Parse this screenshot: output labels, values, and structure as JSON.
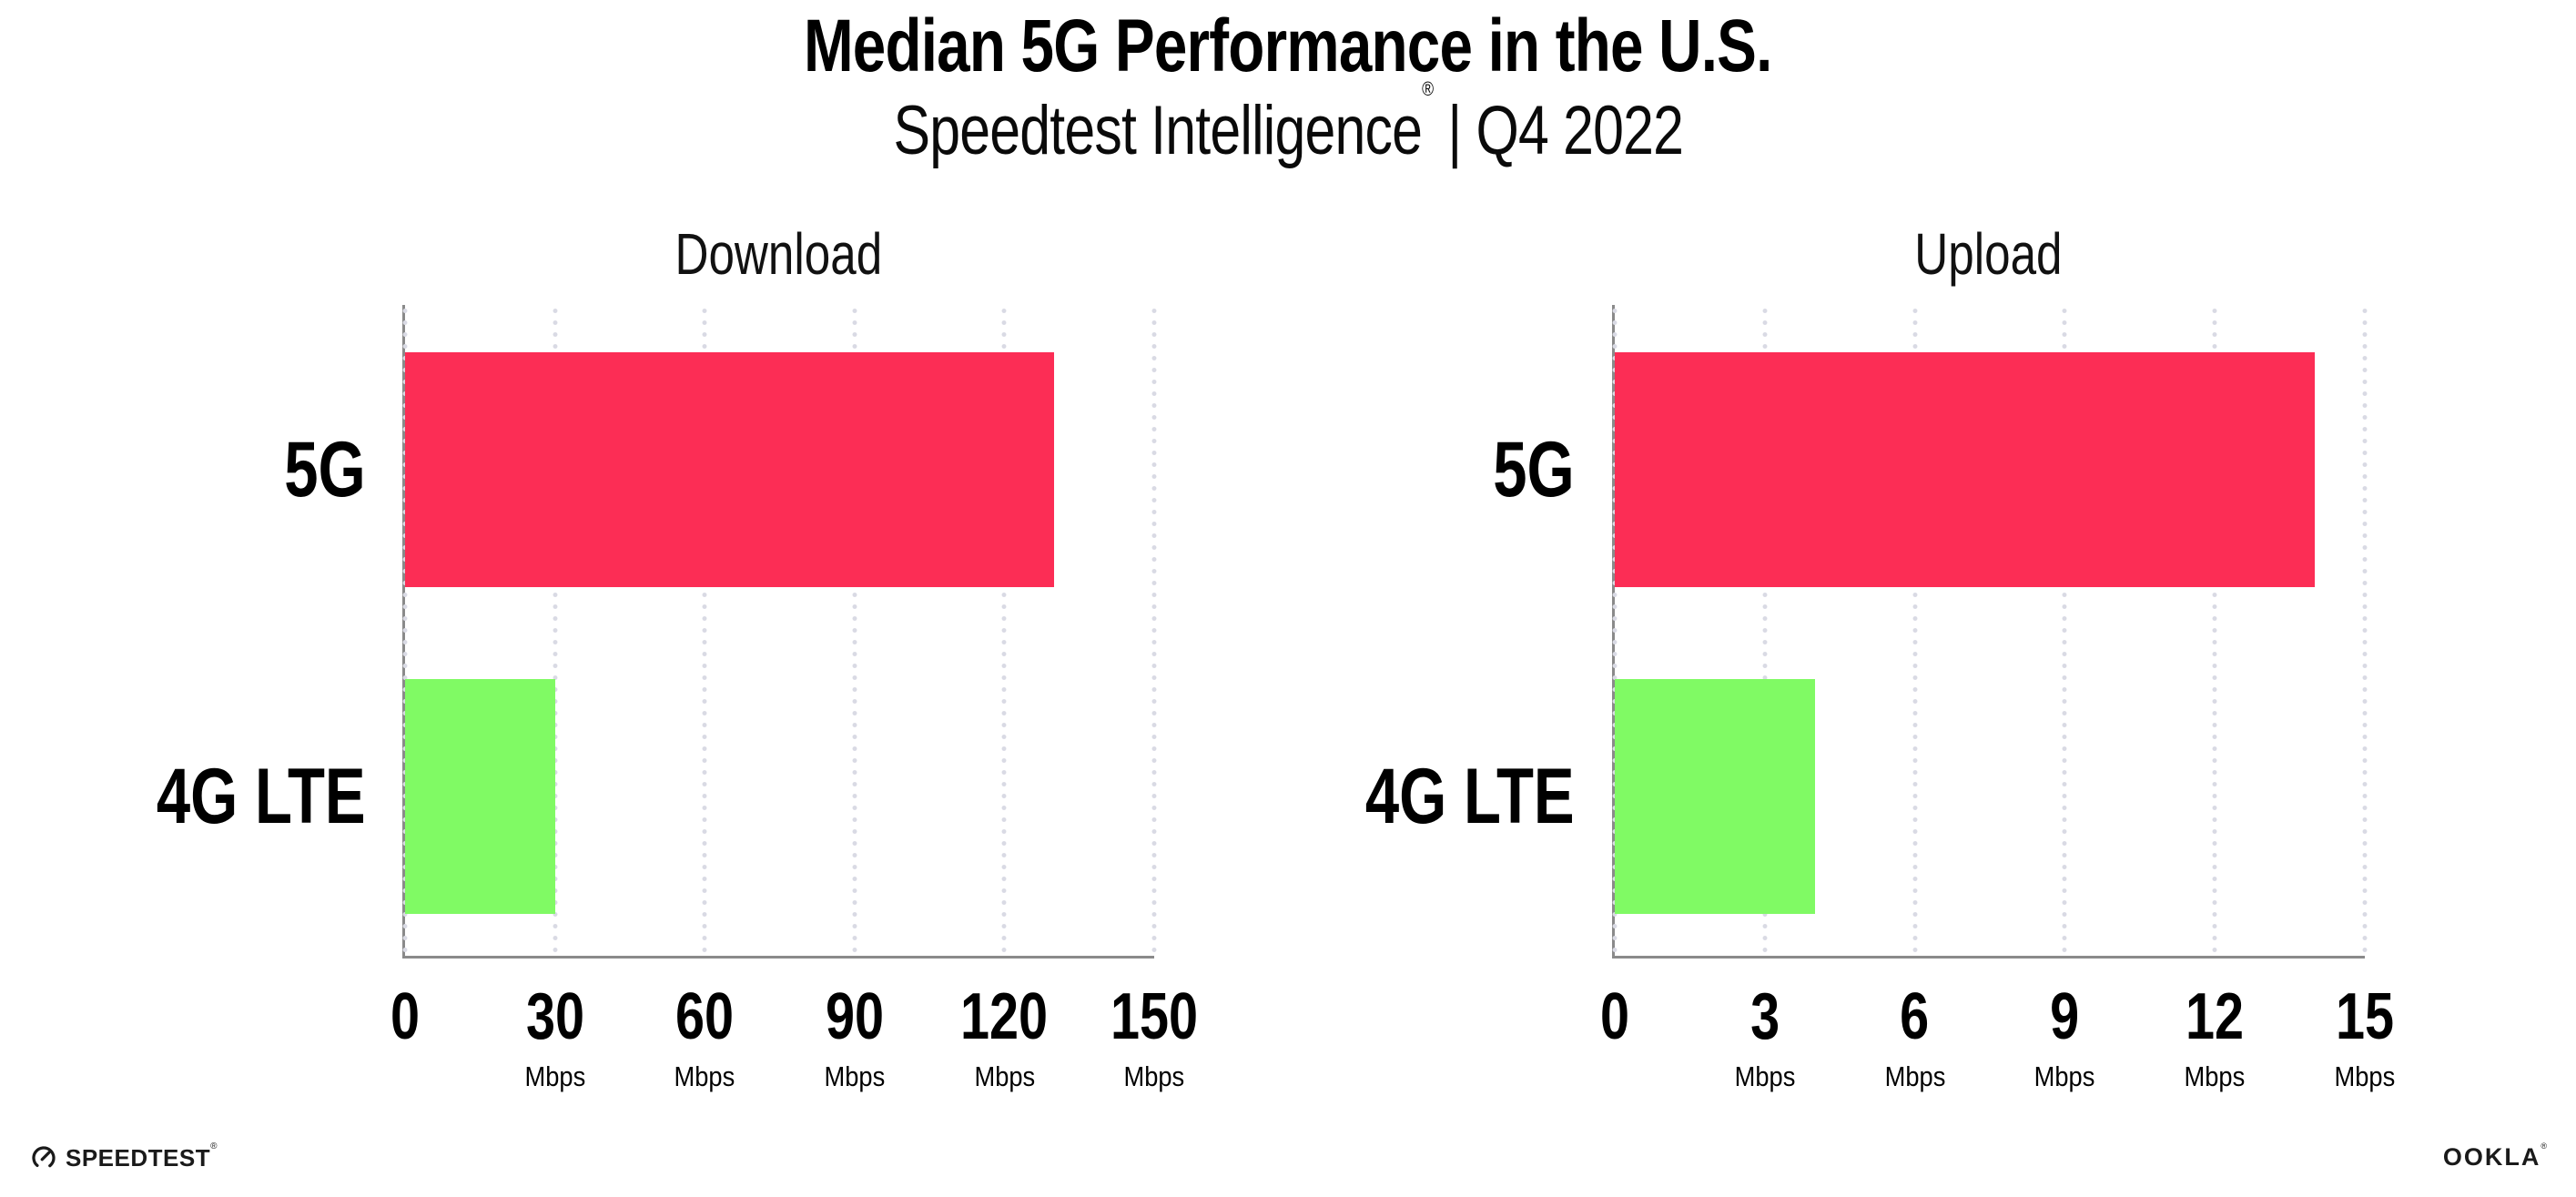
{
  "header": {
    "title": "Median 5G Performance in the U.S.",
    "subtitle_brand": "Speedtest Intelligence",
    "subtitle_reg": "®",
    "subtitle_rest": " | Q4 2022"
  },
  "chart_data": [
    {
      "type": "bar",
      "orientation": "horizontal",
      "title": "Download",
      "categories": [
        "5G",
        "4G LTE"
      ],
      "values": [
        130,
        30
      ],
      "unit": "Mbps",
      "bar_colors": [
        "#fc2d55",
        "#80fa64"
      ],
      "xlim": [
        0,
        150
      ],
      "xticks": [
        0,
        30,
        60,
        90,
        120,
        150
      ],
      "tick_unit": "Mbps",
      "grid": "dotted-vertical-at-ticks",
      "legend": "none"
    },
    {
      "type": "bar",
      "orientation": "horizontal",
      "title": "Upload",
      "categories": [
        "5G",
        "4G LTE"
      ],
      "values": [
        14,
        4
      ],
      "unit": "Mbps",
      "bar_colors": [
        "#fc2d55",
        "#80fa64"
      ],
      "xlim": [
        0,
        15
      ],
      "xticks": [
        0,
        3,
        6,
        9,
        12,
        15
      ],
      "tick_unit": "Mbps",
      "grid": "dotted-vertical-at-ticks",
      "legend": "none"
    }
  ],
  "footer": {
    "speedtest_label": "SPEEDTEST",
    "speedtest_reg": "®",
    "ookla_label": "OOKLA",
    "ookla_reg": "®"
  },
  "colors": {
    "bar_5g": "#fc2d55",
    "bar_4g_lte": "#80fa64",
    "axis_line": "#8a8a8a",
    "gridline_dots": "#d9dae4",
    "text": "#000000",
    "background": "#ffffff"
  }
}
